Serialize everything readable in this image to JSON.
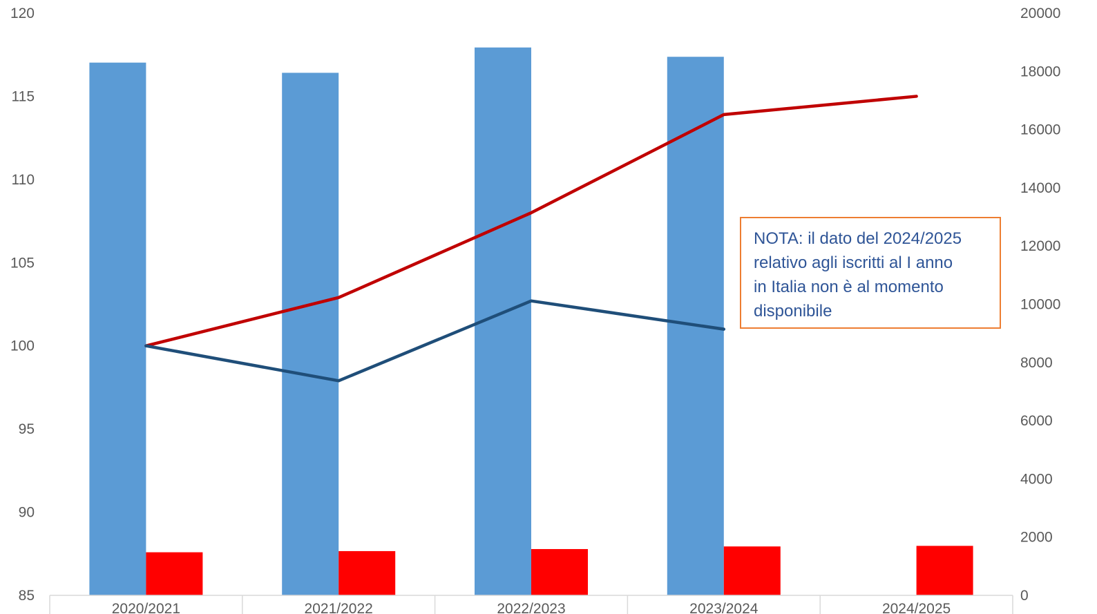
{
  "chart_data": {
    "type": "bar",
    "categories": [
      "2020/2021",
      "2021/2022",
      "2022/2023",
      "2023/2024",
      "2024/2025"
    ],
    "y_left": {
      "ylim": [
        85,
        120
      ],
      "ticks": [
        85,
        90,
        95,
        100,
        105,
        110,
        115,
        120
      ]
    },
    "y_right": {
      "ylim": [
        0,
        20000
      ],
      "ticks": [
        0,
        2000,
        4000,
        6000,
        8000,
        10000,
        12000,
        14000,
        16000,
        18000,
        20000
      ]
    },
    "bar_series": [
      {
        "axis": "right",
        "color": "#5B9BD5",
        "values": [
          18300,
          17950,
          18820,
          18500,
          null
        ]
      },
      {
        "axis": "right",
        "color": "#FF0000",
        "values": [
          1480,
          1520,
          1590,
          1680,
          1700
        ]
      }
    ],
    "line_series": [
      {
        "axis": "left",
        "color": "#C00000",
        "values": [
          100,
          102.9,
          108,
          113.9,
          115
        ]
      },
      {
        "axis": "left",
        "color": "#1F4E79",
        "values": [
          100,
          97.9,
          102.7,
          101,
          null
        ]
      }
    ],
    "grid": false,
    "annotation": "NOTA: il dato del 2024/2025 relativo agli iscritti al I anno in Italia non è al momento disponibile"
  },
  "note": {
    "line1": "NOTA: il dato del 2024/2025",
    "line2": "relativo agli iscritti al I anno",
    "line3": "in Italia non è al momento",
    "line4": "disponibile"
  }
}
